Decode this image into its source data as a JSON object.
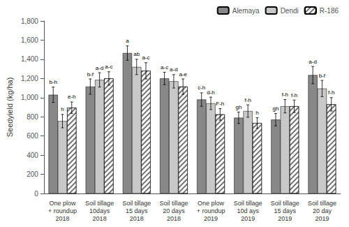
{
  "chart_data": {
    "type": "bar",
    "ylabel": "Seedyield (kg/ha)",
    "categories": [
      "One plow\n+ roundup\n2018",
      "Soil tillage\n10days\n2018",
      "Soil tillage\n15 days\n2018",
      "Soil tillage\n20 days\n2018",
      "One plow\n+ roundup\n2019",
      "Soil tillage\n10d ays\n2019",
      "Soil tillage\n15 days\n2019",
      "Soil tillage\n20 day\n2019"
    ],
    "series": [
      {
        "name": "Alemaya",
        "color": "#888888",
        "values": [
          1030,
          1115,
          1465,
          1200,
          980,
          790,
          770,
          1235
        ],
        "errors": [
          80,
          80,
          75,
          65,
          70,
          60,
          65,
          90
        ],
        "significance_labels": [
          "b-h",
          "b-f",
          "a",
          "a-c",
          "c-h",
          "gh",
          "gh",
          "a-d"
        ]
      },
      {
        "name": "Dendi",
        "color": "#c8c8c8",
        "values": [
          755,
          1185,
          1320,
          1170,
          940,
          860,
          910,
          1095
        ],
        "errors": [
          70,
          75,
          80,
          70,
          65,
          65,
          70,
          85
        ],
        "significance_labels": [
          "h",
          "a-d",
          "ab",
          "a-d",
          "d-h",
          "f-h",
          "f-h",
          "b-f"
        ]
      },
      {
        "name": "R-186",
        "color": "#ffffff",
        "values": [
          895,
          1200,
          1280,
          1115,
          825,
          735,
          910,
          930
        ],
        "errors": [
          60,
          70,
          85,
          80,
          60,
          55,
          65,
          70
        ],
        "significance_labels": [
          "e-h",
          "a-c",
          "a-c",
          "a-e",
          "F-h",
          "h",
          "f-h",
          "f-h"
        ]
      }
    ],
    "ylim": [
      0,
      1800
    ],
    "yticks": [
      0,
      200,
      400,
      600,
      800,
      1000,
      1200,
      1400,
      1600,
      1800
    ],
    "grid": false,
    "legend": "upper right"
  }
}
